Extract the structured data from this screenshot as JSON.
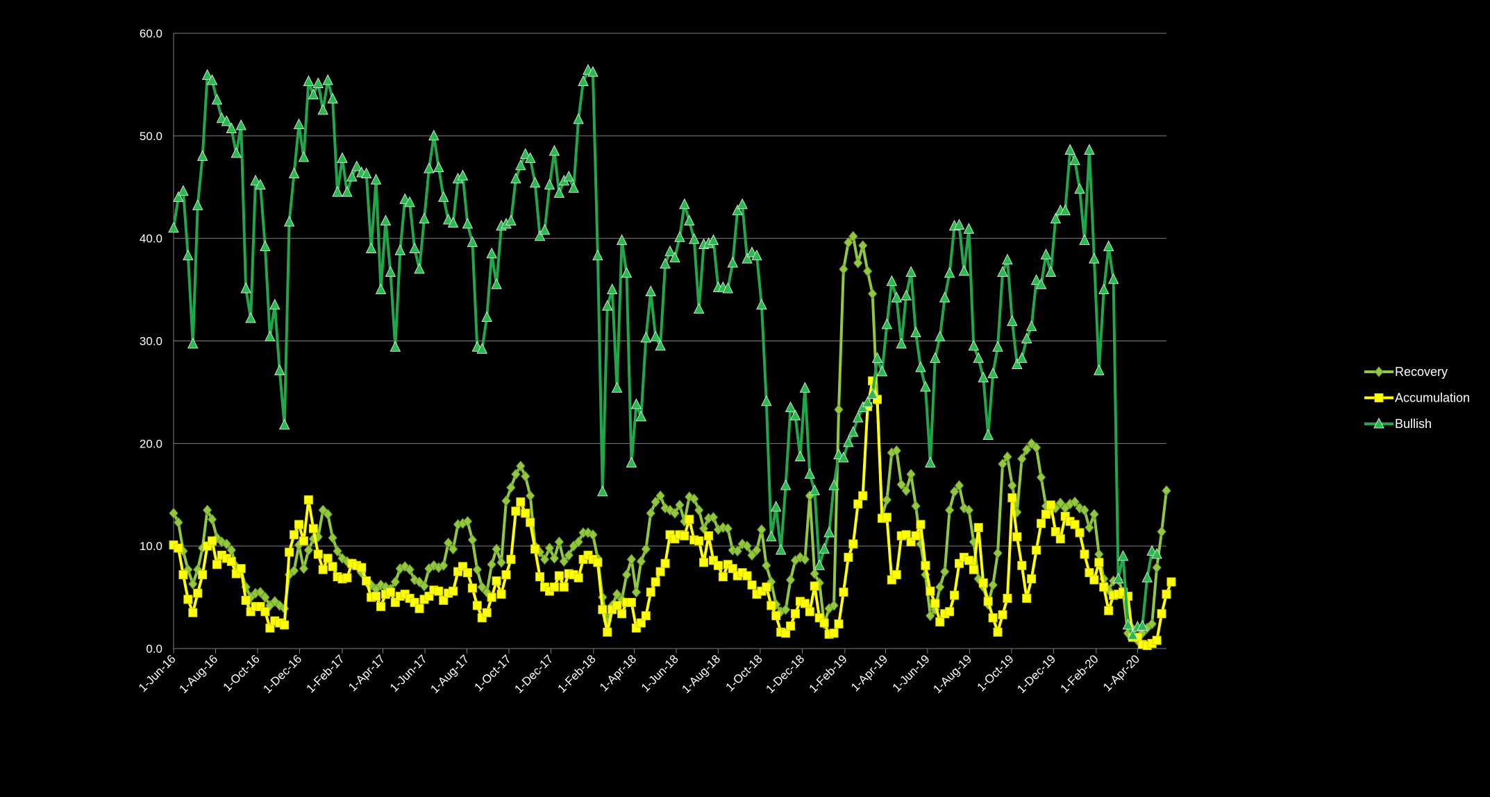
{
  "chart_data": {
    "type": "line",
    "title": "",
    "xlabel": "",
    "ylabel": "",
    "ylim": [
      0,
      60
    ],
    "y_ticks": [
      "0.0",
      "10.0",
      "20.0",
      "30.0",
      "40.0",
      "50.0",
      "60.0"
    ],
    "x_tick_labels": [
      "1-Jun-16",
      "1-Aug-16",
      "1-Oct-16",
      "1-Dec-16",
      "1-Feb-17",
      "1-Apr-17",
      "1-Jun-17",
      "1-Aug-17",
      "1-Oct-17",
      "1-Dec-17",
      "1-Feb-18",
      "1-Apr-18",
      "1-Jun-18",
      "1-Aug-18",
      "1-Oct-18",
      "1-Dec-18",
      "1-Feb-19",
      "1-Apr-19",
      "1-Jun-19",
      "1-Aug-19",
      "1-Oct-19",
      "1-Dec-19",
      "1-Feb-20",
      "1-Apr-20"
    ],
    "grid": "horizontal",
    "legend_position": "right",
    "x_start": "2016-06-01",
    "x_interval_days": 7,
    "series": [
      {
        "name": "Recovery",
        "color": "#92c83e",
        "marker": "diamond",
        "values": [
          13.2,
          12.3,
          9.5,
          7.7,
          6.3,
          7.7,
          9.8,
          13.5,
          12.6,
          10.8,
          10.4,
          10.2,
          9.6,
          8.0,
          7.6,
          6.0,
          5.0,
          5.4,
          5.5,
          5.0,
          4.2,
          4.6,
          4.2,
          3.9,
          7.2,
          7.6,
          10.1,
          7.8,
          9.6,
          10.7,
          10.9,
          13.5,
          13.1,
          10.8,
          9.5,
          8.8,
          8.5,
          8.3,
          8.1,
          7.4,
          6.5,
          6.2,
          5.8,
          6.2,
          6.0,
          5.8,
          6.5,
          7.8,
          8.0,
          7.7,
          6.7,
          6.5,
          6.1,
          7.8,
          8.1,
          7.9,
          8.1,
          10.3,
          9.7,
          12.1,
          12.2,
          12.4,
          10.6,
          7.7,
          6.0,
          5.5,
          8.2,
          9.7,
          8.4,
          14.4,
          15.7,
          17.0,
          17.8,
          16.8,
          14.9,
          10.0,
          9.4,
          8.7,
          9.8,
          8.8,
          10.4,
          8.5,
          9.1,
          10.0,
          10.4,
          11.3,
          11.3,
          11.1,
          8.8,
          5.0,
          2.7,
          4.2,
          5.3,
          4.8,
          7.2,
          8.7,
          5.5,
          8.5,
          9.7,
          13.2,
          14.3,
          14.9,
          13.7,
          13.5,
          13.2,
          14.0,
          12.4,
          14.8,
          14.6,
          13.5,
          11.7,
          12.7,
          12.8,
          11.6,
          11.8,
          11.7,
          9.6,
          9.5,
          10.2,
          10.0,
          9.1,
          9.6,
          11.6,
          8.1,
          6.5,
          4.3,
          3.6,
          3.8,
          6.7,
          8.6,
          8.9,
          8.7,
          14.9,
          7.3,
          6.4,
          2.4,
          3.9,
          4.2,
          23.3,
          37.0,
          39.6,
          40.2,
          37.6,
          39.3,
          36.8,
          34.6,
          24.1,
          12.9,
          14.5,
          19.1,
          19.3,
          16.0,
          15.4,
          17.0,
          13.9,
          10.2,
          7.2,
          3.2,
          3.8,
          6.0,
          7.5,
          13.5,
          15.3,
          15.9,
          13.7,
          13.5,
          10.4,
          6.8,
          6.0,
          4.3,
          6.2,
          9.3,
          18.0,
          18.7,
          15.9,
          13.3,
          18.5,
          19.4,
          20.0,
          19.6,
          16.7,
          13.9,
          13.5,
          13.7,
          14.2,
          13.7,
          14.1,
          14.3,
          13.7,
          13.5,
          11.8,
          13.1,
          9.2,
          6.8,
          5.7,
          6.6,
          6.7,
          5.5,
          1.5,
          1.9,
          0.8,
          1.5,
          2.0,
          2.4,
          7.9,
          11.4,
          15.4
        ]
      },
      {
        "name": "Accumulation",
        "color": "#ffff00",
        "marker": "square",
        "values": [
          10.1,
          9.8,
          7.2,
          4.8,
          3.5,
          5.4,
          7.2,
          10.0,
          10.5,
          8.2,
          9.1,
          8.8,
          8.5,
          7.3,
          7.8,
          4.7,
          3.6,
          4.1,
          4.1,
          3.6,
          2.0,
          2.7,
          2.5,
          2.3,
          9.4,
          11.1,
          12.1,
          10.5,
          14.5,
          11.7,
          9.2,
          7.7,
          8.8,
          8.0,
          7.0,
          6.8,
          6.9,
          8.3,
          8.1,
          7.9,
          6.6,
          5.0,
          5.1,
          4.1,
          5.3,
          5.5,
          4.5,
          5.1,
          5.3,
          4.9,
          4.5,
          3.9,
          4.8,
          5.1,
          5.7,
          5.6,
          4.7,
          5.4,
          5.6,
          7.5,
          8.0,
          7.4,
          5.9,
          4.2,
          3.0,
          3.5,
          5.0,
          6.6,
          5.3,
          7.2,
          8.7,
          13.4,
          14.3,
          13.2,
          12.3,
          9.7,
          7.0,
          6.0,
          5.6,
          6.0,
          7.1,
          6.0,
          7.3,
          7.2,
          6.9,
          8.7,
          9.1,
          8.7,
          8.4,
          3.8,
          1.6,
          3.8,
          4.2,
          3.4,
          4.5,
          4.5,
          2.0,
          2.5,
          3.2,
          5.5,
          6.5,
          7.5,
          8.3,
          11.1,
          10.7,
          11.1,
          11.0,
          12.6,
          10.6,
          10.5,
          8.4,
          11.0,
          8.6,
          8.1,
          7.0,
          8.2,
          7.8,
          7.1,
          7.4,
          7.1,
          6.2,
          5.3,
          5.6,
          6.0,
          4.2,
          3.2,
          1.6,
          1.5,
          2.2,
          3.4,
          4.6,
          4.4,
          3.6,
          6.1,
          3.0,
          2.5,
          1.4,
          1.5,
          2.4,
          5.5,
          8.9,
          10.2,
          14.1,
          14.9,
          23.6,
          26.1,
          24.3,
          12.7,
          12.8,
          6.7,
          7.2,
          11.0,
          11.1,
          10.4,
          11.0,
          12.1,
          8.1,
          5.6,
          4.4,
          2.6,
          3.4,
          3.6,
          5.2,
          8.3,
          8.9,
          8.6,
          7.7,
          11.8,
          6.4,
          4.6,
          3.0,
          1.6,
          3.3,
          4.9,
          14.7,
          10.9,
          8.1,
          4.9,
          6.8,
          9.6,
          12.2,
          13.1,
          14.0,
          11.4,
          10.7,
          12.9,
          12.4,
          12.1,
          11.3,
          9.2,
          7.4,
          6.7,
          8.4,
          6.0,
          3.7,
          5.2,
          5.3,
          5.5,
          5.1,
          1.1,
          1.1,
          0.4,
          0.3,
          0.5,
          0.8,
          3.4,
          5.3,
          6.5
        ]
      },
      {
        "name": "Bullish",
        "color": "#1fa84a",
        "marker": "triangle",
        "values": [
          41.0,
          44.0,
          44.6,
          38.3,
          29.7,
          43.2,
          48.0,
          55.9,
          55.4,
          53.5,
          51.7,
          51.4,
          50.7,
          48.3,
          51.0,
          35.1,
          32.2,
          45.6,
          45.2,
          39.2,
          30.4,
          33.5,
          27.1,
          21.8,
          41.6,
          46.3,
          51.1,
          47.9,
          55.3,
          54.0,
          55.1,
          52.5,
          55.4,
          53.6,
          44.5,
          47.8,
          44.5,
          46.0,
          47.0,
          46.4,
          46.3,
          39.0,
          45.7,
          35.0,
          41.7,
          36.7,
          29.4,
          38.8,
          43.8,
          43.5,
          39.0,
          37.0,
          41.9,
          46.8,
          50.0,
          46.9,
          44.0,
          41.8,
          41.5,
          45.8,
          46.1,
          41.4,
          39.6,
          29.4,
          29.2,
          32.3,
          38.5,
          35.5,
          41.2,
          41.4,
          41.7,
          45.8,
          47.1,
          48.2,
          47.8,
          45.4,
          40.2,
          40.8,
          45.2,
          48.5,
          44.4,
          45.6,
          46.0,
          44.9,
          51.6,
          55.3,
          56.4,
          56.2,
          38.3,
          15.3,
          33.4,
          35.0,
          25.4,
          39.8,
          36.6,
          18.1,
          23.8,
          22.6,
          30.3,
          34.8,
          30.4,
          29.5,
          37.5,
          38.7,
          38.1,
          40.1,
          43.3,
          41.7,
          39.9,
          33.1,
          39.4,
          39.5,
          39.8,
          35.2,
          35.2,
          35.1,
          37.6,
          42.7,
          43.3,
          38.0,
          38.6,
          38.3,
          33.5,
          24.1,
          10.9,
          13.8,
          9.6,
          15.9,
          23.5,
          22.7,
          18.7,
          25.4,
          17.0,
          15.4,
          8.1,
          9.7,
          11.3,
          15.9,
          18.9,
          18.6,
          20.1,
          21.1,
          22.5,
          23.5,
          24.0,
          24.8,
          28.3,
          27.0,
          31.6,
          35.8,
          34.2,
          29.7,
          34.4,
          36.7,
          30.8,
          27.4,
          25.5,
          18.1,
          28.3,
          30.4,
          34.2,
          36.6,
          41.2,
          41.3,
          36.8,
          40.9,
          29.5,
          28.3,
          26.4,
          20.8,
          26.8,
          29.4,
          36.7,
          37.9,
          31.9,
          27.7,
          28.3,
          30.2,
          31.4,
          35.9,
          35.5,
          38.4,
          36.7,
          41.9,
          42.7,
          42.7,
          48.6,
          47.6,
          44.8,
          39.8,
          48.6,
          38.0,
          27.1,
          35.0,
          39.2,
          36.0,
          6.8,
          9.0,
          2.3,
          1.3,
          2.1,
          2.2,
          6.9,
          9.5,
          9.2
        ]
      }
    ]
  }
}
